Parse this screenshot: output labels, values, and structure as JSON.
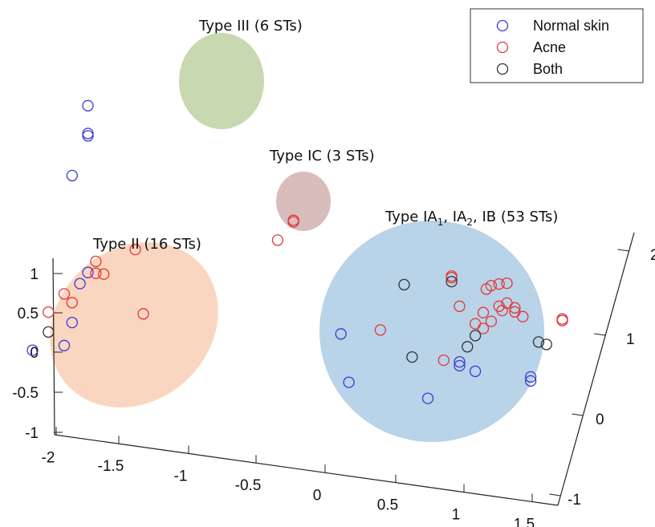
{
  "chart_data": {
    "type": "scatter",
    "title": "",
    "xlabel": "",
    "ylabel": "",
    "zlabel": "",
    "projection": "3d",
    "grid": false,
    "legend_placement": "top-right",
    "colors": {
      "normal": "#3a3ad6",
      "acne": "#e23838",
      "both": "#333333"
    },
    "x_ticks": [
      "-2",
      "-1.5",
      "-1",
      "-0.5",
      "0",
      "0.5",
      "1",
      "1.5"
    ],
    "y_ticks": [
      "-1",
      "-0.5",
      "0",
      "0.5",
      "1"
    ],
    "depth_ticks": [
      "-1",
      "0",
      "1",
      "2"
    ],
    "legend": [
      {
        "key": "normal",
        "label": "Normal skin"
      },
      {
        "key": "acne",
        "label": "Acne"
      },
      {
        "key": "both",
        "label": "Both"
      }
    ],
    "clusters": [
      {
        "id": "type3",
        "label": "Type III (6 STs)",
        "color": "#c8d8b0"
      },
      {
        "id": "typeIC",
        "label": "Type IC (3 STs)",
        "color": "#d9bcbc"
      },
      {
        "id": "type2",
        "label": "Type II (16 STs)",
        "color": "#fad6c0"
      },
      {
        "id": "type1",
        "label_parts": [
          "Type IA",
          "1",
          ", IA",
          "2",
          ", IB (53 STs)"
        ],
        "color": "#b9d3e8"
      }
    ],
    "series": [
      {
        "name": "Normal skin",
        "key": "normal",
        "points": [
          [
            -1.5,
            2.8
          ],
          [
            -1.5,
            2.45
          ],
          [
            -1.5,
            2.42
          ],
          [
            -1.6,
            1.9
          ],
          [
            -1.85,
            -0.35
          ],
          [
            -1.65,
            -0.25
          ],
          [
            -1.6,
            0.05
          ],
          [
            -1.55,
            0.55
          ],
          [
            -1.5,
            0.7
          ],
          [
            0.1,
            0.25
          ],
          [
            0.15,
            -0.35
          ],
          [
            0.65,
            -0.45
          ],
          [
            0.85,
            0.0
          ],
          [
            0.85,
            0.05
          ],
          [
            0.95,
            -0.05
          ],
          [
            1.3,
            -0.05
          ],
          [
            1.3,
            -0.1
          ]
        ]
      },
      {
        "name": "Acne",
        "key": "acne",
        "points": [
          [
            -0.3,
            1.35
          ],
          [
            -0.2,
            1.6
          ],
          [
            -0.2,
            1.62
          ],
          [
            -1.75,
            0.15
          ],
          [
            -1.65,
            0.4
          ],
          [
            -1.6,
            0.3
          ],
          [
            -1.45,
            0.85
          ],
          [
            -1.45,
            0.7
          ],
          [
            -1.4,
            0.7
          ],
          [
            -1.2,
            1.05
          ],
          [
            -1.15,
            0.25
          ],
          [
            0.35,
            0.35
          ],
          [
            0.75,
            0.05
          ],
          [
            0.8,
            1.1
          ],
          [
            0.8,
            1.12
          ],
          [
            0.85,
            0.75
          ],
          [
            0.95,
            0.55
          ],
          [
            1.0,
            0.5
          ],
          [
            1.05,
            0.6
          ],
          [
            1.05,
            1.05
          ],
          [
            1.1,
            1.08
          ],
          [
            1.1,
            0.8
          ],
          [
            1.12,
            0.75
          ],
          [
            1.15,
            0.85
          ],
          [
            1.15,
            1.1
          ],
          [
            1.2,
            0.75
          ],
          [
            1.2,
            0.8
          ],
          [
            1.25,
            0.7
          ],
          [
            1.5,
            0.7
          ],
          [
            1.5,
            0.72
          ],
          [
            1.0,
            0.7
          ],
          [
            1.02,
            1.0
          ]
        ]
      },
      {
        "name": "Both",
        "key": "both",
        "points": [
          [
            -1.75,
            -0.1
          ],
          [
            0.5,
            0.95
          ],
          [
            0.55,
            0.05
          ],
          [
            0.8,
            1.05
          ],
          [
            0.9,
            0.25
          ],
          [
            0.95,
            0.4
          ],
          [
            1.35,
            0.4
          ],
          [
            1.4,
            0.38
          ]
        ]
      }
    ]
  }
}
